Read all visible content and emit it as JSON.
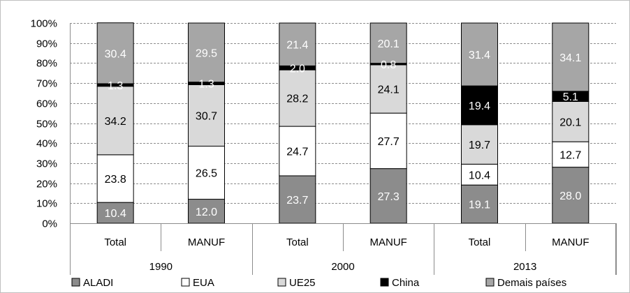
{
  "chart_data": {
    "type": "bar",
    "stacked": true,
    "percent": true,
    "title": "",
    "xlabel": "",
    "ylabel": "",
    "ylim": [
      0,
      100
    ],
    "yticks": [
      "0%",
      "10%",
      "20%",
      "30%",
      "40%",
      "50%",
      "60%",
      "70%",
      "80%",
      "90%",
      "100%"
    ],
    "grid": true,
    "legend_position": "bottom",
    "groups": [
      "1990",
      "2000",
      "2013"
    ],
    "categories": [
      "Total",
      "MANUF",
      "Total",
      "MANUF",
      "Total",
      "MANUF"
    ],
    "series": [
      {
        "name": "ALADI",
        "color": "#8c8c8c",
        "values": [
          10.4,
          12.0,
          23.7,
          27.3,
          19.1,
          28.0
        ]
      },
      {
        "name": "EUA",
        "color": "#ffffff",
        "values": [
          23.8,
          26.5,
          24.7,
          27.7,
          10.4,
          12.7
        ]
      },
      {
        "name": "UE25",
        "color": "#d9d9d9",
        "values": [
          34.2,
          30.7,
          28.2,
          24.1,
          19.7,
          20.1
        ]
      },
      {
        "name": "China",
        "color": "#000000",
        "values": [
          1.3,
          1.3,
          2.0,
          0.8,
          19.4,
          5.1
        ]
      },
      {
        "name": "Demais países",
        "color": "#a6a6a6",
        "values": [
          30.4,
          29.5,
          21.4,
          20.1,
          31.4,
          34.1
        ]
      }
    ],
    "data_labels": [
      [
        "10.4",
        "12.0",
        "23.7",
        "27.3",
        "19.1",
        "28.0"
      ],
      [
        "23.8",
        "26.5",
        "24.7",
        "27.7",
        "10.4",
        "12.7"
      ],
      [
        "34.2",
        "30.7",
        "28.2",
        "24.1",
        "19.7",
        "20.1"
      ],
      [
        "1.3",
        "1.3",
        "2.0",
        "0.8",
        "19.4",
        "5.1"
      ],
      [
        "30.4",
        "29.5",
        "21.4",
        "20.1",
        "31.4",
        "34.1"
      ]
    ],
    "label_colors": [
      [
        "#ffffff",
        "#ffffff",
        "#ffffff",
        "#ffffff",
        "#ffffff",
        "#ffffff"
      ],
      [
        "#000000",
        "#000000",
        "#000000",
        "#000000",
        "#000000",
        "#000000"
      ],
      [
        "#000000",
        "#000000",
        "#000000",
        "#000000",
        "#000000",
        "#000000"
      ],
      [
        "#ffffff",
        "#ffffff",
        "#ffffff",
        "#ffffff",
        "#ffffff",
        "#ffffff"
      ],
      [
        "#ffffff",
        "#ffffff",
        "#ffffff",
        "#ffffff",
        "#ffffff",
        "#ffffff"
      ]
    ]
  }
}
